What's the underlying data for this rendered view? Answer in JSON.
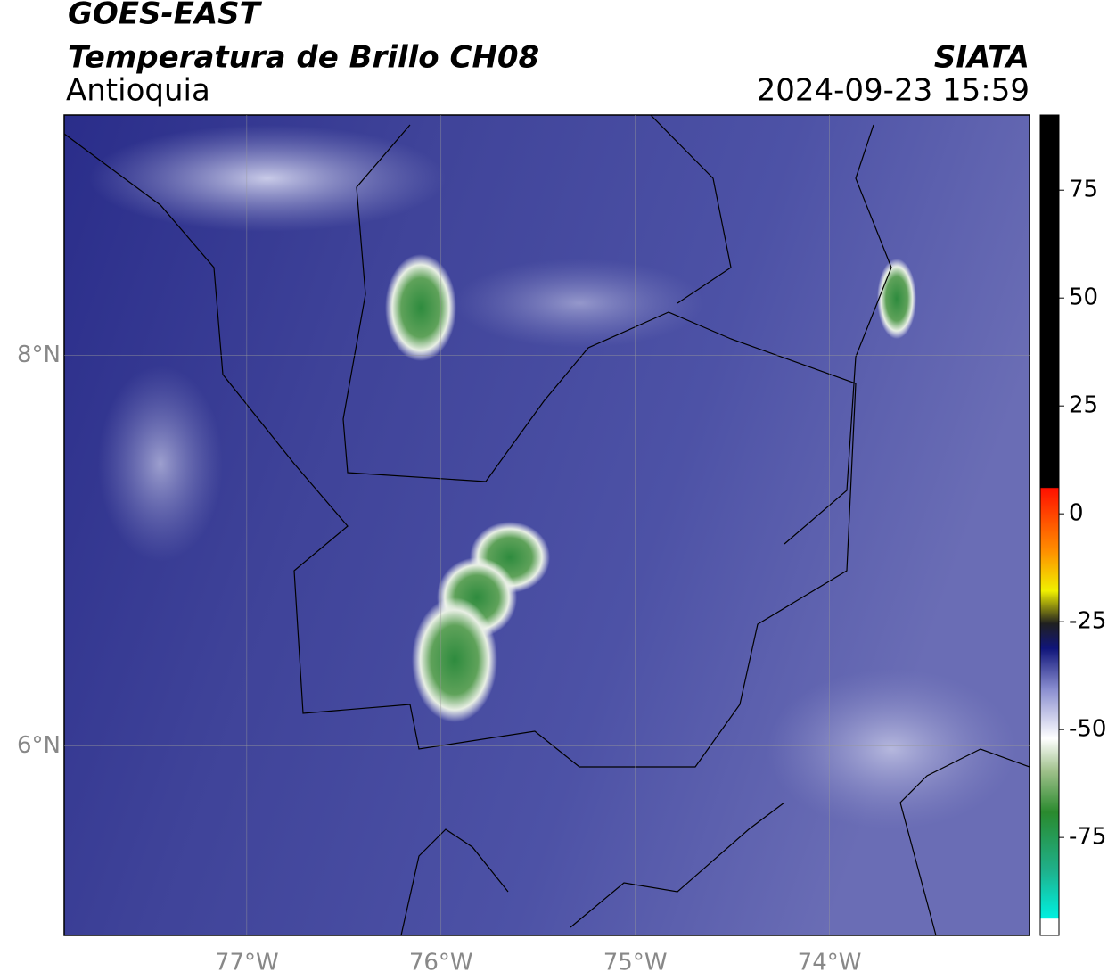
{
  "header": {
    "satellite": "GOES-EAST",
    "product": "Temperatura de Brillo CH08",
    "region": "Antioquia",
    "source": "SIATA",
    "datetime": "2024-09-23 15:59"
  },
  "map": {
    "xlim": [
      -77.94,
      -72.97
    ],
    "ylim": [
      5.03,
      9.23
    ],
    "xticks": [
      {
        "value": -77,
        "label": "77°W"
      },
      {
        "value": -76,
        "label": "76°W"
      },
      {
        "value": -75,
        "label": "75°W"
      },
      {
        "value": -74,
        "label": "74°W"
      }
    ],
    "yticks": [
      {
        "value": 6,
        "label": "6°N"
      },
      {
        "value": 8,
        "label": "8°N"
      }
    ],
    "grid": true
  },
  "colorbar": {
    "lim": [
      -97.7,
      92.4
    ],
    "ticks": [
      75,
      50,
      25,
      0,
      -25,
      -50,
      -75
    ]
  }
}
